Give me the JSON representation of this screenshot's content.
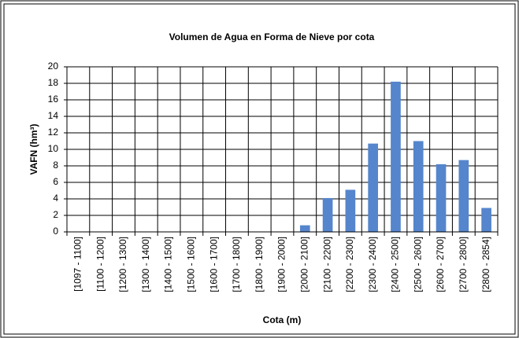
{
  "chart_data": {
    "type": "bar",
    "title": "Volumen de Agua en Forma de Nieve por cota",
    "x_label": "Cota (m)",
    "y_label": "VAFN (hm³)",
    "categories": [
      "[1097 - 1100]",
      "[1100 - 1200]",
      "[1200 - 1300]",
      "[1300 - 1400]",
      "[1400 - 1500]",
      "[1500 - 1600]",
      "[1600 - 1700]",
      "[1700 - 1800]",
      "[1800 - 1900]",
      "[1900 - 2000]",
      "[2000 - 2100]",
      "[2100 - 2200]",
      "[2200 - 2300]",
      "[2300 - 2400]",
      "[2400 - 2500]",
      "[2500 - 2600]",
      "[2600 - 2700]",
      "[2700 - 2800]",
      "[2800 - 2854]"
    ],
    "values": [
      0,
      0,
      0,
      0,
      0,
      0,
      0,
      0,
      0,
      0,
      0.8,
      4.1,
      5.1,
      10.7,
      18.2,
      11.0,
      8.2,
      8.7,
      2.9
    ],
    "color": "#5585cc",
    "ylim": [
      0,
      20
    ],
    "yticks": [
      0,
      2,
      4,
      6,
      8,
      10,
      12,
      14,
      16,
      18,
      20
    ],
    "grid": true
  }
}
